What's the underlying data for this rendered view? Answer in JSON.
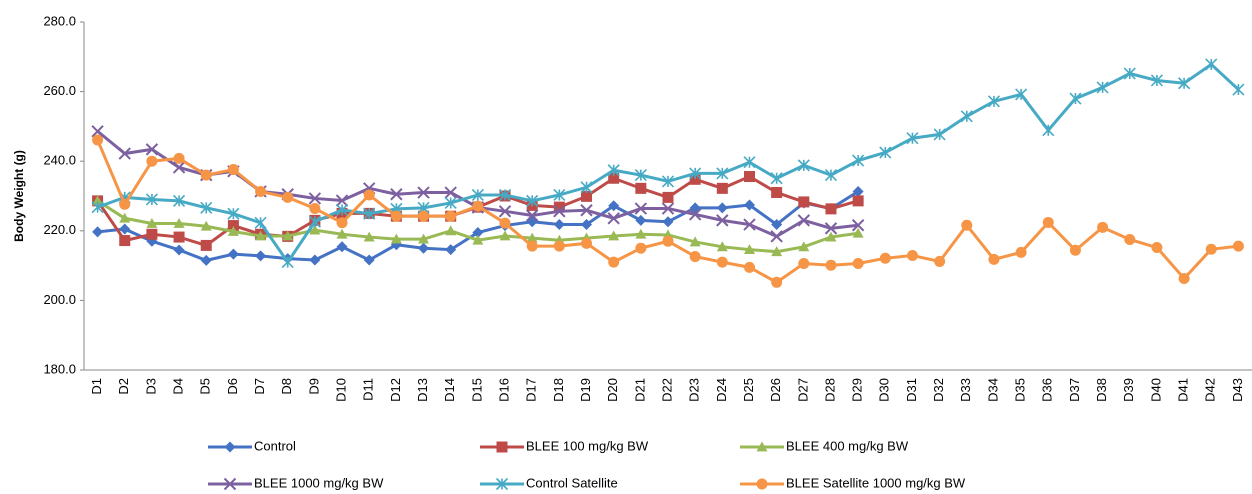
{
  "chart_data": {
    "type": "line",
    "y_label": "Body Weight (g)",
    "ylim": [
      180,
      280
    ],
    "yticks": [
      {
        "value": 180,
        "label": "180.0"
      },
      {
        "value": 200,
        "label": "200.0"
      },
      {
        "value": 220,
        "label": "220.0"
      },
      {
        "value": 240,
        "label": "240.0"
      },
      {
        "value": 260,
        "label": "260.0"
      },
      {
        "value": 280,
        "label": "280.0"
      }
    ],
    "grid": false,
    "legend": "bottom",
    "categories": [
      "D1",
      "D2",
      "D3",
      "D4",
      "D5",
      "D6",
      "D7",
      "D8",
      "D9",
      "D10",
      "D11",
      "D12",
      "D13",
      "D14",
      "D15",
      "D16",
      "D17",
      "D18",
      "D19",
      "D20",
      "D21",
      "D22",
      "D23",
      "D24",
      "D25",
      "D26",
      "D27",
      "D28",
      "D29",
      "D30",
      "D31",
      "D32",
      "D33",
      "D34",
      "D35",
      "D36",
      "D37",
      "D38",
      "D39",
      "D40",
      "D41",
      "D42",
      "D43"
    ],
    "series": [
      {
        "name": "Control",
        "color": "#4472c4",
        "marker": "diamond",
        "values": [
          219.7,
          220.5,
          217,
          214.5,
          211.5,
          213.3,
          212.8,
          212,
          211.6,
          215.4,
          211.6,
          216,
          215,
          214.6,
          219.5,
          221.5,
          222.6,
          221.8,
          221.8,
          227.2,
          223,
          222.6,
          226.6,
          226.6,
          227.4,
          221.8,
          228,
          226.4,
          231.3,
          null,
          null,
          null,
          null,
          null,
          null,
          null,
          null,
          null,
          null,
          null,
          null,
          null,
          null
        ]
      },
      {
        "name": "BLEE 100 mg/kg BW",
        "color": "#be4b48",
        "marker": "square",
        "values": [
          228.6,
          217.2,
          219,
          218.2,
          215.8,
          221.5,
          219,
          218.4,
          223,
          225,
          225,
          224.2,
          224.2,
          224.2,
          226.8,
          230,
          227.3,
          226.8,
          229.9,
          235.1,
          232.2,
          229.6,
          234.8,
          232.2,
          235.6,
          231,
          228.3,
          226.3,
          228.6,
          null,
          null,
          null,
          null,
          null,
          null,
          null,
          null,
          null,
          null,
          null,
          null,
          null,
          null
        ]
      },
      {
        "name": "BLEE 400 mg/kg BW",
        "color": "#98b954",
        "marker": "triangle",
        "values": [
          228.6,
          223.6,
          222.1,
          222.1,
          221.3,
          219.8,
          218.5,
          218.5,
          220.2,
          219,
          218.2,
          217.6,
          217.6,
          220,
          217.3,
          218.5,
          217.9,
          217.3,
          217.9,
          218.5,
          219,
          218.8,
          216.8,
          215.4,
          214.6,
          214,
          215.4,
          218.2,
          219.3,
          null,
          null,
          null,
          null,
          null,
          null,
          null,
          null,
          null,
          null,
          null,
          null,
          null,
          null
        ]
      },
      {
        "name": "BLEE 1000 mg/kg BW",
        "color": "#7d60a0",
        "marker": "x",
        "values": [
          248.6,
          242.2,
          243.4,
          238.2,
          236,
          237.1,
          231.3,
          230.5,
          229.3,
          228.7,
          232.2,
          230.5,
          231,
          231,
          226.7,
          225.6,
          224.4,
          225.6,
          225.9,
          223.6,
          226.4,
          226.4,
          224.7,
          223,
          221.8,
          218.4,
          223,
          220.7,
          221.6,
          null,
          null,
          null,
          null,
          null,
          null,
          null,
          null,
          null,
          null,
          null,
          null,
          null,
          null
        ]
      },
      {
        "name": "Control Satellite",
        "color": "#46aac5",
        "marker": "star",
        "values": [
          226.8,
          229.6,
          229,
          228.6,
          226.6,
          224.9,
          222.3,
          211,
          222.6,
          226,
          224.9,
          226.3,
          226.6,
          228,
          230.3,
          230.3,
          228.6,
          230.3,
          232.5,
          237.4,
          236,
          234.2,
          236.5,
          236.5,
          239.7,
          235.1,
          238.8,
          236,
          240.2,
          242.5,
          246.6,
          247.7,
          252.9,
          257.2,
          259.2,
          248.9,
          258,
          261.2,
          265.2,
          263.2,
          262.4,
          267.8,
          260.6
        ]
      },
      {
        "name": "BLEE Satellite 1000 mg/kg BW",
        "color": "#f69546",
        "marker": "circle",
        "values": [
          246.1,
          227.6,
          240,
          240.8,
          236,
          237.6,
          231.3,
          229.6,
          226.4,
          222.3,
          230.3,
          224.2,
          224.2,
          224.2,
          227.1,
          222.2,
          215.6,
          215.6,
          216.4,
          211,
          215,
          217,
          212.6,
          211,
          209.5,
          205.2,
          210.6,
          210.1,
          210.6,
          212.1,
          212.9,
          211.2,
          221.6,
          211.8,
          213.8,
          222.4,
          214.4,
          221,
          217.5,
          215.2,
          206.3,
          214.7,
          215.6
        ]
      }
    ]
  }
}
